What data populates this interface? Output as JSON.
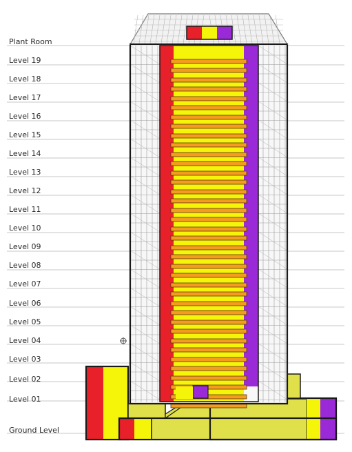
{
  "levels": [
    {
      "name": "Plant Room"
    },
    {
      "name": "Level 19"
    },
    {
      "name": "Level 18"
    },
    {
      "name": "Level 17"
    },
    {
      "name": "Level 16"
    },
    {
      "name": "Level 15"
    },
    {
      "name": "Level 14"
    },
    {
      "name": "Level 13"
    },
    {
      "name": "Level 12"
    },
    {
      "name": "Level 11"
    },
    {
      "name": "Level 10"
    },
    {
      "name": "Level 09"
    },
    {
      "name": "Level 08"
    },
    {
      "name": "Level 07"
    },
    {
      "name": "Level 06"
    },
    {
      "name": "Level 05"
    },
    {
      "name": "Level 04"
    },
    {
      "name": "Level 03"
    },
    {
      "name": "Level 02"
    },
    {
      "name": "Level 01"
    },
    {
      "name": "Ground Level"
    }
  ],
  "colors": {
    "red": "#e8202a",
    "yellow": "#f5f50a",
    "purple": "#9a2ad8",
    "olive": "#e0e04a",
    "orange": "#f39c1e",
    "frame": "#1a1a1a"
  }
}
